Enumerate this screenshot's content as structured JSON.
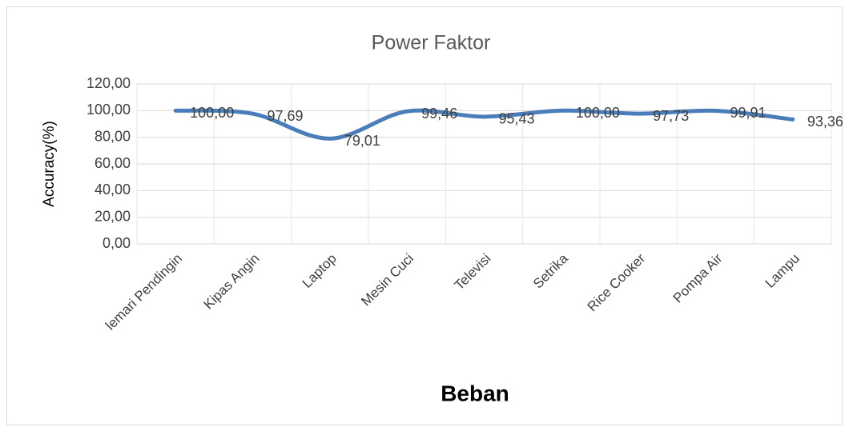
{
  "chart_data": {
    "type": "line",
    "title": "Power Faktor",
    "x_label": "Beban",
    "y_label": "Accuracy(%)",
    "categories": [
      "lemari Pendingin",
      "Kipas Angin",
      "Laptop",
      "Mesin Cuci",
      "Televisi",
      "Setrika",
      "Rice Cooker",
      "Pompa Air",
      "Lampu"
    ],
    "series": [
      {
        "name": "Power Faktor",
        "color": "#4a7ebb",
        "values": [
          100.0,
          97.69,
          79.01,
          99.46,
          95.43,
          100.0,
          97.73,
          99.91,
          93.36
        ],
        "value_labels": [
          "100,00",
          "97,69",
          "79,01",
          "99,46",
          "95,43",
          "100,00",
          "97,73",
          "99,91",
          "93,36"
        ]
      }
    ],
    "ylim": [
      0,
      120
    ],
    "yticks": [
      {
        "value": 0,
        "label": "0,00"
      },
      {
        "value": 20,
        "label": "20,00"
      },
      {
        "value": 40,
        "label": "40,00"
      },
      {
        "value": 60,
        "label": "60,00"
      },
      {
        "value": 80,
        "label": "80,00"
      },
      {
        "value": 100,
        "label": "100,00"
      },
      {
        "value": 120,
        "label": "120,00"
      }
    ],
    "grid": true,
    "smooth": true
  }
}
